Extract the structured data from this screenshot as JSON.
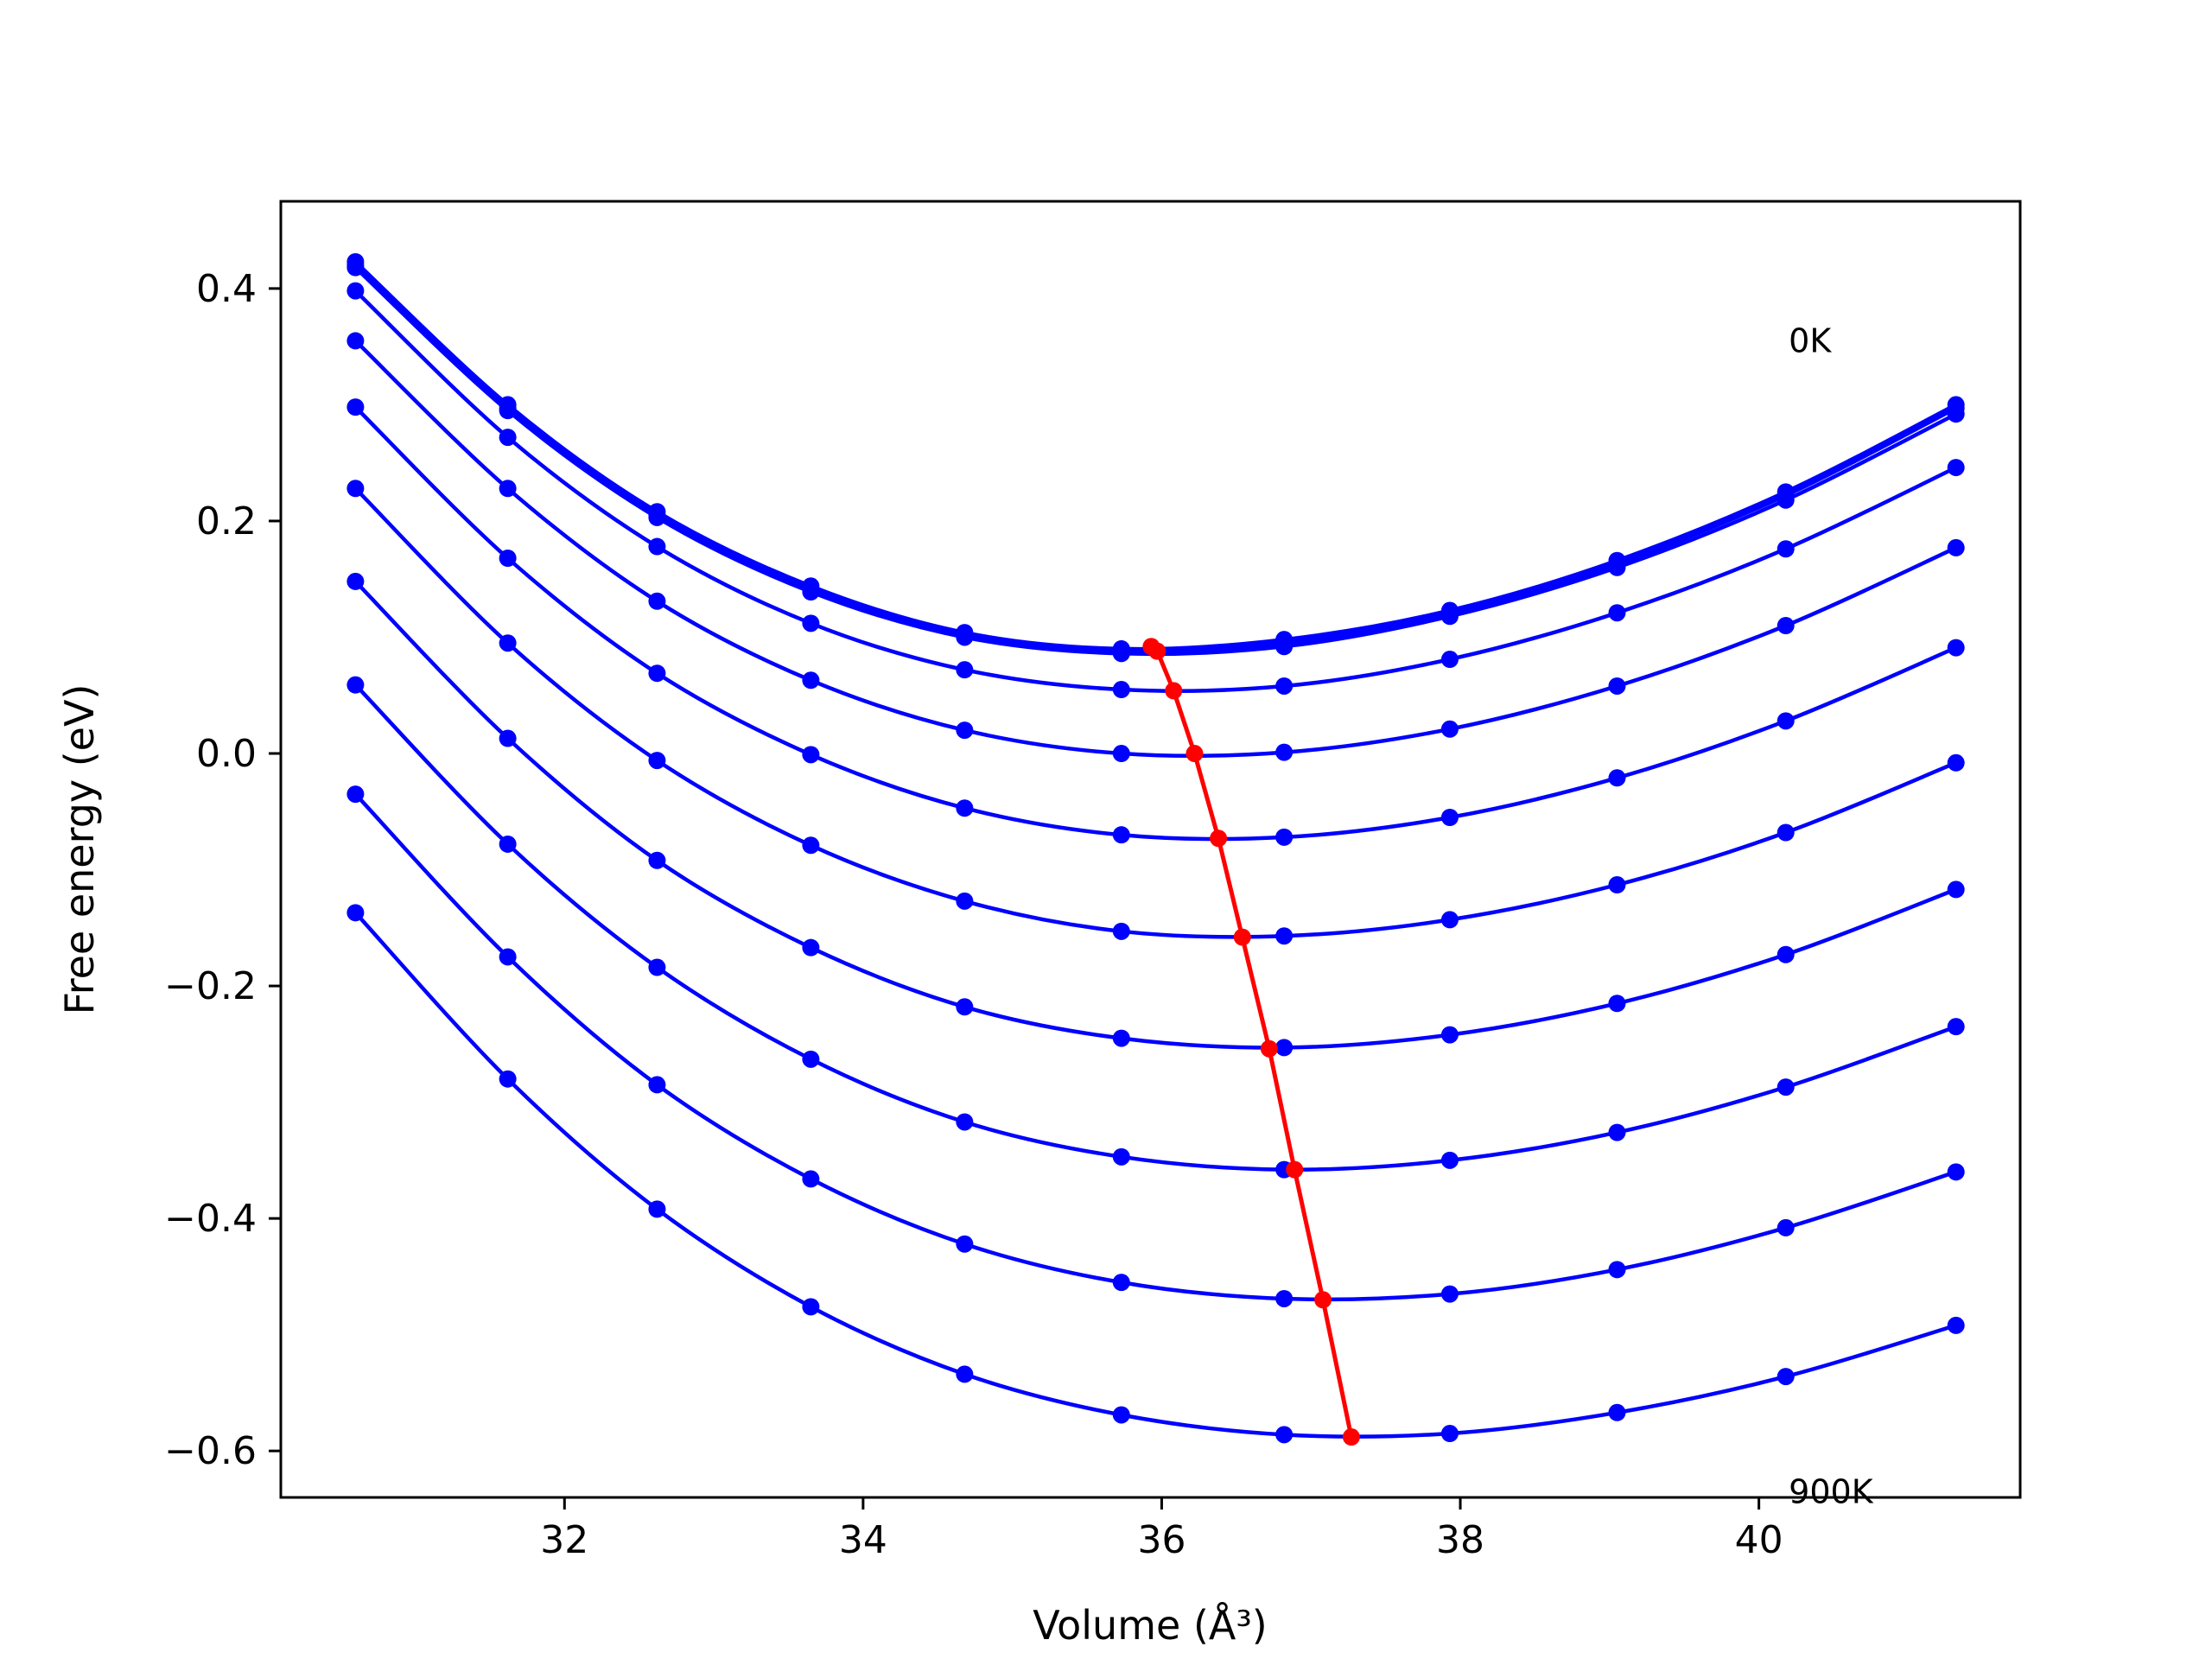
{
  "chart_data": {
    "type": "line",
    "xlabel": "Volume (Å³)",
    "ylabel": "Free energy (eV)",
    "xlim": [
      30.1,
      41.75
    ],
    "ylim": [
      -0.64,
      0.475
    ],
    "x_ticks": [
      32,
      34,
      36,
      38,
      40
    ],
    "x_tick_labels": [
      "32",
      "34",
      "36",
      "38",
      "40"
    ],
    "y_ticks": [
      0.4,
      0.2,
      0.0,
      -0.2,
      -0.4,
      -0.6
    ],
    "y_tick_labels": [
      "0.4",
      "0.2",
      "0.0",
      "−0.2",
      "−0.4",
      "−0.6"
    ],
    "grid": false,
    "legend": "none",
    "annotations": [
      {
        "text": "0K",
        "x": 40.2,
        "y": 0.355
      },
      {
        "text": "900K",
        "x": 40.2,
        "y": -0.635
      }
    ],
    "colors": {
      "curves": "#0000ff",
      "minima": "#ff0000",
      "frame": "#000000"
    },
    "x_points": [
      30.6,
      31.62,
      32.62,
      33.65,
      34.68,
      35.73,
      36.82,
      37.93,
      39.05,
      40.18,
      41.32
    ],
    "series": [
      {
        "values": [
          0.423,
          0.3,
          0.208,
          0.144,
          0.104,
          0.09,
          0.098,
          0.123,
          0.166,
          0.225,
          0.3
        ]
      },
      {
        "values": [
          0.42,
          0.297,
          0.205,
          0.141,
          0.101,
          0.087,
          0.095,
          0.12,
          0.163,
          0.222,
          0.297
        ]
      },
      {
        "values": [
          0.418,
          0.295,
          0.203,
          0.139,
          0.1,
          0.086,
          0.092,
          0.118,
          0.16,
          0.218,
          0.292
        ]
      },
      {
        "values": [
          0.398,
          0.272,
          0.178,
          0.112,
          0.072,
          0.055,
          0.058,
          0.081,
          0.121,
          0.176,
          0.246
        ]
      },
      {
        "values": [
          0.355,
          0.228,
          0.131,
          0.063,
          0.02,
          0.0,
          0.001,
          0.021,
          0.058,
          0.11,
          0.177
        ]
      },
      {
        "values": [
          0.298,
          0.168,
          0.069,
          -0.001,
          -0.047,
          -0.07,
          -0.072,
          -0.055,
          -0.021,
          0.028,
          0.091
        ]
      },
      {
        "values": [
          0.228,
          0.095,
          -0.006,
          -0.079,
          -0.127,
          -0.153,
          -0.157,
          -0.143,
          -0.113,
          -0.068,
          -0.008
        ]
      },
      {
        "values": [
          0.148,
          0.013,
          -0.092,
          -0.167,
          -0.218,
          -0.245,
          -0.253,
          -0.242,
          -0.215,
          -0.173,
          -0.117
        ]
      },
      {
        "values": [
          0.059,
          -0.078,
          -0.184,
          -0.263,
          -0.317,
          -0.347,
          -0.358,
          -0.35,
          -0.326,
          -0.287,
          -0.235
        ]
      },
      {
        "values": [
          -0.035,
          -0.175,
          -0.285,
          -0.366,
          -0.422,
          -0.455,
          -0.469,
          -0.465,
          -0.444,
          -0.408,
          -0.36
        ]
      },
      {
        "values": [
          -0.137,
          -0.28,
          -0.392,
          -0.476,
          -0.534,
          -0.569,
          -0.586,
          -0.585,
          -0.567,
          -0.536,
          -0.492
        ]
      }
    ],
    "minima": {
      "x": [
        35.93,
        35.97,
        36.08,
        36.22,
        36.38,
        36.54,
        36.72,
        36.89,
        37.08,
        37.27
      ],
      "y": [
        0.092,
        0.088,
        0.054,
        0.0,
        -0.073,
        -0.158,
        -0.254,
        -0.358,
        -0.47,
        -0.588
      ]
    }
  }
}
